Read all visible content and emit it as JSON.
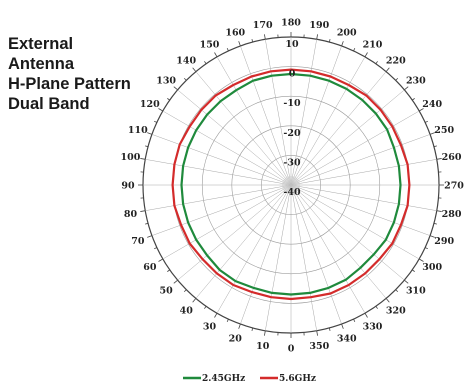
{
  "title_lines": [
    "External",
    "Antenna",
    "H-Plane Pattern",
    "Dual Band"
  ],
  "chart_data": {
    "type": "polar",
    "angles_deg": [
      0,
      10,
      20,
      30,
      40,
      50,
      60,
      70,
      80,
      90,
      100,
      110,
      120,
      130,
      140,
      150,
      160,
      170,
      180,
      190,
      200,
      210,
      220,
      230,
      240,
      250,
      260,
      270,
      280,
      290,
      300,
      310,
      320,
      330,
      340,
      350
    ],
    "angle_labels": [
      "0",
      "10",
      "20",
      "30",
      "40",
      "50",
      "60",
      "70",
      "80",
      "90",
      "100",
      "110",
      "120",
      "130",
      "140",
      "150",
      "160",
      "170",
      "180",
      "190",
      "200",
      "210",
      "220",
      "230",
      "240",
      "250",
      "260",
      "270",
      "280",
      "290",
      "300",
      "310",
      "320",
      "330",
      "340",
      "350"
    ],
    "radial_axis": {
      "min": -40,
      "max": 10,
      "step": 10
    },
    "ring_labels": [
      "10",
      "0",
      "-10",
      "-20",
      "-30",
      "-40"
    ],
    "series": [
      {
        "name": "2.45GHz",
        "color": "#1f8a3c",
        "values": [
          -3,
          -3,
          -3,
          -2.5,
          -2.5,
          -3,
          -3,
          -3,
          -3,
          -3,
          -3,
          -3,
          -3,
          -3,
          -3,
          -3,
          -2.5,
          -2.5,
          -2.5,
          -2.5,
          -2.5,
          -2.5,
          -2.5,
          -2.5,
          -2.5,
          -3,
          -3,
          -3,
          -3,
          -3,
          -3,
          -3.5,
          -3.5,
          -3,
          -3,
          -3
        ]
      },
      {
        "name": "5.6GHz",
        "color": "#d42b2b",
        "values": [
          -1.5,
          -1.5,
          -1.5,
          -1,
          -1,
          -1,
          -0.5,
          -0.5,
          0,
          0,
          0,
          0,
          -0.5,
          -0.5,
          -0.5,
          -1,
          -1,
          -1,
          -1,
          -1,
          -1,
          -1,
          -0.5,
          -0.5,
          -0.5,
          -0.5,
          0,
          0,
          0,
          -0.5,
          -0.5,
          -1,
          -1,
          -1,
          -1,
          -1.5
        ]
      }
    ],
    "legend": {
      "placement": "bottom",
      "entries": [
        "2.45GHz",
        "5.6GHz"
      ]
    }
  }
}
